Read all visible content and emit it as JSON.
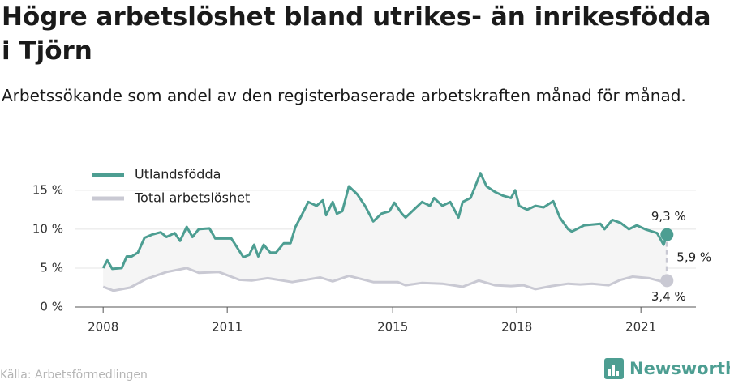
{
  "chart_data": {
    "type": "line",
    "title": "Högre arbetslöshet bland utrikes- än inrikesfödda i Tjörn",
    "subtitle": "Arbetssökande som andel av den registerbaserade arbetskraften månad för månad.",
    "source": "Källa: Arbetsförmedlingen",
    "brand": "Newsworthy",
    "gap_label": "5,9 %",
    "xlim": [
      2007.33,
      2022.33
    ],
    "xticks": [
      2008,
      2011,
      2015,
      2018,
      2021
    ],
    "ylim": [
      0,
      18
    ],
    "yticks": [
      {
        "value": 0,
        "label": "0 %"
      },
      {
        "value": 5,
        "label": "5 %"
      },
      {
        "value": 10,
        "label": "10 %"
      },
      {
        "value": 15,
        "label": "15 %"
      }
    ],
    "grid": true,
    "legend": "top-left",
    "series": [
      {
        "name": "Utlandsfödda",
        "color": "#4d9e92",
        "end_label": "9,3 %",
        "x": [
          2008.0,
          2008.1,
          2008.22,
          2008.45,
          2008.57,
          2008.69,
          2008.84,
          2009.0,
          2009.18,
          2009.39,
          2009.53,
          2009.73,
          2009.86,
          2010.02,
          2010.16,
          2010.31,
          2010.57,
          2010.71,
          2010.9,
          2011.1,
          2011.39,
          2011.53,
          2011.65,
          2011.75,
          2011.88,
          2012.04,
          2012.18,
          2012.37,
          2012.53,
          2012.65,
          2012.8,
          2012.96,
          2013.16,
          2013.31,
          2013.39,
          2013.55,
          2013.65,
          2013.78,
          2013.94,
          2014.14,
          2014.33,
          2014.53,
          2014.73,
          2014.92,
          2015.04,
          2015.22,
          2015.31,
          2015.51,
          2015.71,
          2015.9,
          2016.0,
          2016.2,
          2016.39,
          2016.59,
          2016.69,
          2016.88,
          2016.98,
          2017.12,
          2017.27,
          2017.47,
          2017.67,
          2017.86,
          2017.96,
          2018.06,
          2018.25,
          2018.45,
          2018.65,
          2018.88,
          2019.04,
          2019.24,
          2019.33,
          2019.63,
          2020.02,
          2020.12,
          2020.31,
          2020.51,
          2020.71,
          2020.9,
          2021.1,
          2021.39,
          2021.55,
          2021.63
        ],
        "values": [
          5.0,
          6.0,
          4.9,
          5.0,
          6.5,
          6.5,
          7.0,
          8.9,
          9.3,
          9.6,
          9.0,
          9.5,
          8.5,
          10.3,
          9.0,
          10.0,
          10.1,
          8.8,
          8.8,
          8.8,
          6.4,
          6.7,
          8.0,
          6.5,
          8.0,
          7.0,
          7.0,
          8.2,
          8.2,
          10.3,
          11.8,
          13.5,
          13.0,
          13.7,
          11.8,
          13.5,
          12.0,
          12.3,
          15.5,
          14.5,
          13.0,
          11.0,
          12.0,
          12.3,
          13.4,
          12.0,
          11.5,
          12.5,
          13.5,
          13.0,
          14.0,
          13.0,
          13.5,
          11.5,
          13.5,
          14.0,
          15.3,
          17.2,
          15.5,
          14.8,
          14.3,
          14.0,
          15.0,
          13.0,
          12.5,
          13.0,
          12.8,
          13.6,
          11.5,
          10.0,
          9.7,
          10.5,
          10.7,
          10.0,
          11.2,
          10.8,
          10.0,
          10.5,
          10.0,
          9.5,
          8.0,
          9.3
        ]
      },
      {
        "name": "Total arbetslöshet",
        "color": "#c9c9d3",
        "end_label": "3,4 %",
        "x": [
          2008.0,
          2008.25,
          2008.65,
          2009.04,
          2009.53,
          2010.02,
          2010.31,
          2010.8,
          2011.29,
          2011.59,
          2011.98,
          2012.57,
          2013.25,
          2013.55,
          2013.94,
          2014.53,
          2015.12,
          2015.31,
          2015.71,
          2016.2,
          2016.69,
          2017.08,
          2017.47,
          2017.86,
          2018.16,
          2018.45,
          2018.84,
          2019.24,
          2019.53,
          2019.82,
          2020.22,
          2020.51,
          2020.8,
          2021.2,
          2021.49,
          2021.63
        ],
        "values": [
          2.6,
          2.1,
          2.5,
          3.6,
          4.5,
          5.0,
          4.4,
          4.5,
          3.5,
          3.4,
          3.7,
          3.2,
          3.8,
          3.3,
          4.0,
          3.2,
          3.2,
          2.8,
          3.1,
          3.0,
          2.6,
          3.4,
          2.8,
          2.7,
          2.8,
          2.3,
          2.7,
          3.0,
          2.9,
          3.0,
          2.8,
          3.5,
          3.9,
          3.7,
          3.3,
          3.4
        ]
      }
    ]
  }
}
